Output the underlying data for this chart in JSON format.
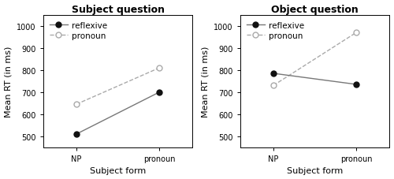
{
  "left_title": "Subject question",
  "right_title": "Object question",
  "xlabel": "Subject form",
  "ylabel": "Mean RT (in ms)",
  "xtick_labels": [
    "NP",
    "pronoun"
  ],
  "yticks": [
    500,
    600,
    700,
    800,
    900,
    1000
  ],
  "ylim": [
    450,
    1050
  ],
  "left": {
    "reflexive": [
      510,
      700
    ],
    "pronoun": [
      645,
      810
    ]
  },
  "right": {
    "reflexive": [
      785,
      735
    ],
    "pronoun": [
      730,
      970
    ]
  },
  "reflexive_style": {
    "color": "#777777",
    "linestyle": "-",
    "marker": "o",
    "markerfacecolor": "#111111",
    "markeredgecolor": "#111111",
    "markersize": 5,
    "linewidth": 1.0
  },
  "pronoun_style": {
    "color": "#aaaaaa",
    "linestyle": "--",
    "marker": "o",
    "markerfacecolor": "white",
    "markeredgecolor": "#aaaaaa",
    "markersize": 5,
    "linewidth": 1.0
  },
  "legend_labels": [
    "reflexive",
    "pronoun"
  ],
  "title_fontsize": 9,
  "axis_label_fontsize": 8,
  "tick_fontsize": 7,
  "legend_fontsize": 7.5,
  "background_color": "#ffffff"
}
